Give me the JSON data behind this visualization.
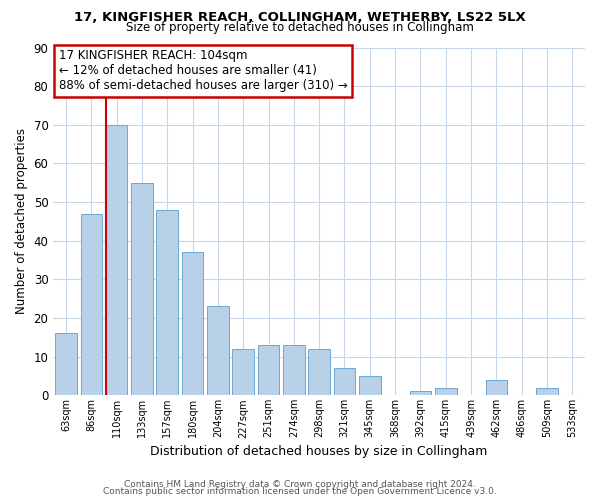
{
  "title1": "17, KINGFISHER REACH, COLLINGHAM, WETHERBY, LS22 5LX",
  "title2": "Size of property relative to detached houses in Collingham",
  "xlabel": "Distribution of detached houses by size in Collingham",
  "ylabel": "Number of detached properties",
  "bar_labels": [
    "63sqm",
    "86sqm",
    "110sqm",
    "133sqm",
    "157sqm",
    "180sqm",
    "204sqm",
    "227sqm",
    "251sqm",
    "274sqm",
    "298sqm",
    "321sqm",
    "345sqm",
    "368sqm",
    "392sqm",
    "415sqm",
    "439sqm",
    "462sqm",
    "486sqm",
    "509sqm",
    "533sqm"
  ],
  "bar_values": [
    16,
    47,
    70,
    55,
    48,
    37,
    23,
    12,
    13,
    13,
    12,
    7,
    5,
    0,
    1,
    2,
    0,
    4,
    0,
    2,
    0
  ],
  "bar_color": "#b8d0e8",
  "bar_edgecolor": "#6aaad4",
  "ylim": [
    0,
    90
  ],
  "yticks": [
    0,
    10,
    20,
    30,
    40,
    50,
    60,
    70,
    80,
    90
  ],
  "vline_x": 2,
  "vline_color": "#cc0000",
  "annotation_title": "17 KINGFISHER REACH: 104sqm",
  "annotation_line1": "← 12% of detached houses are smaller (41)",
  "annotation_line2": "88% of semi-detached houses are larger (310) →",
  "annotation_box_color": "#ffffff",
  "annotation_box_edgecolor": "#cc0000",
  "footer1": "Contains HM Land Registry data © Crown copyright and database right 2024.",
  "footer2": "Contains public sector information licensed under the Open Government Licence v3.0.",
  "background_color": "#ffffff",
  "grid_color": "#c8d8e8"
}
